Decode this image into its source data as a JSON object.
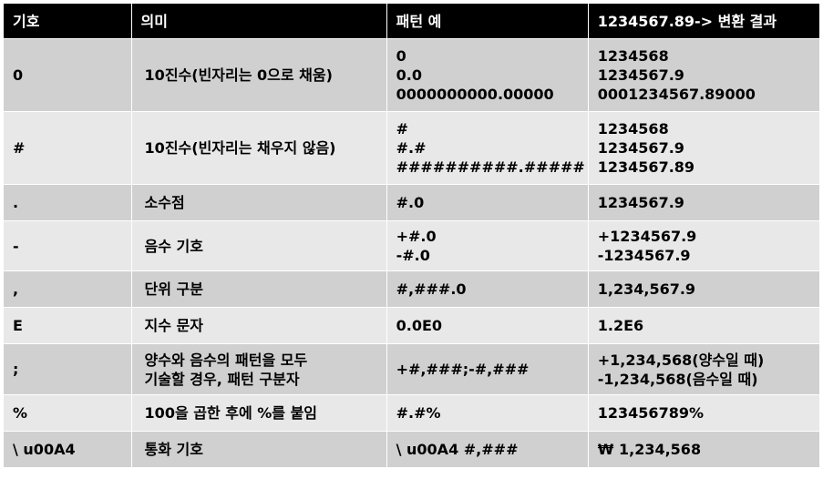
{
  "header": {
    "symbol": "기호",
    "meaning": "의미",
    "pattern": "패턴 예",
    "result": "1234567.89-> 변환 결과"
  },
  "rows": [
    {
      "symbol": "0",
      "meaning": [
        "10진수(빈자리는 0으로 채움)"
      ],
      "pattern": [
        "0",
        "0.0",
        "0000000000.00000"
      ],
      "result": [
        "1234568",
        "1234567.9",
        "0001234567.89000"
      ]
    },
    {
      "symbol": "#",
      "meaning": [
        "10진수(빈자리는 채우지 않음)"
      ],
      "pattern": [
        "#",
        "#.#",
        "##########.#####"
      ],
      "result": [
        "1234568",
        "1234567.9",
        "1234567.89"
      ]
    },
    {
      "symbol": ".",
      "meaning": [
        "소수점"
      ],
      "pattern": [
        "#.0"
      ],
      "result": [
        "1234567.9"
      ]
    },
    {
      "symbol": "-",
      "meaning": [
        "음수 기호"
      ],
      "pattern": [
        "+#.0",
        "-#.0"
      ],
      "result": [
        "+1234567.9",
        "-1234567.9"
      ]
    },
    {
      "symbol": ",",
      "meaning": [
        "단위 구분"
      ],
      "pattern": [
        "#,###.0"
      ],
      "result": [
        "1,234,567.9"
      ]
    },
    {
      "symbol": "E",
      "meaning": [
        "지수 문자"
      ],
      "pattern": [
        "0.0E0"
      ],
      "result": [
        "1.2E6"
      ]
    },
    {
      "symbol": ";",
      "meaning": [
        "양수와 음수의 패턴을 모두",
        "기술할 경우, 패턴 구분자"
      ],
      "pattern": [
        "+#,###;-#,###"
      ],
      "result": [
        "+1,234,568(양수일 때)",
        "-1,234,568(음수일 때)"
      ]
    },
    {
      "symbol": "%",
      "meaning": [
        "100을 곱한 후에 %를 붙임"
      ],
      "pattern": [
        "#.#%"
      ],
      "result": [
        "123456789%"
      ]
    },
    {
      "symbol": "\\ u00A4",
      "meaning": [
        "통화 기호"
      ],
      "pattern": [
        "\\ u00A4 #,###"
      ],
      "result": [
        "₩ 1,234,568"
      ]
    }
  ]
}
